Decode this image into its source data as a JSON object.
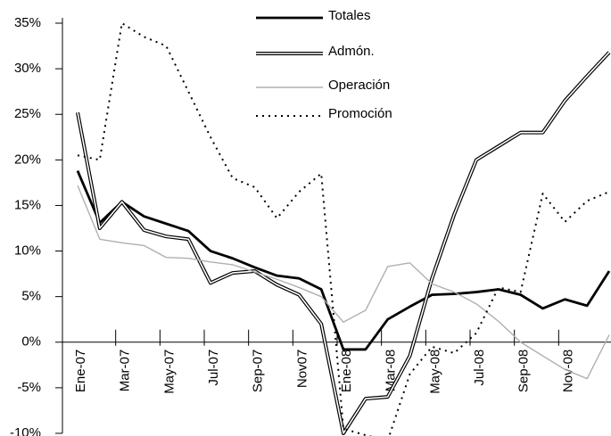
{
  "chart_data": {
    "type": "line",
    "categories": [
      "Ene-07",
      null,
      "Mar-07",
      null,
      "May-07",
      null,
      "Jul-07",
      null,
      "Sep-07",
      null,
      "Nov07",
      null,
      "Ene-08",
      null,
      "Mar-08",
      null,
      "May-08",
      null,
      "Jul-08",
      null,
      "Sep-08",
      null,
      "Nov-08",
      null,
      null
    ],
    "series": [
      {
        "name": "Totales",
        "color": "#000000",
        "line_style": "solid",
        "values": [
          18.8,
          13.1,
          15.4,
          13.8,
          13.0,
          12.2,
          10.0,
          9.2,
          8.2,
          7.3,
          7.0,
          5.8,
          -0.8,
          -0.8,
          2.5,
          3.9,
          5.2,
          5.3,
          5.5,
          5.8,
          5.2,
          3.7,
          4.7,
          4.0,
          7.8
        ]
      },
      {
        "name": "Admón.",
        "color": "#000000",
        "line_style": "double",
        "values": [
          25.2,
          12.5,
          15.4,
          12.3,
          11.6,
          11.3,
          6.5,
          7.6,
          7.8,
          6.3,
          5.2,
          2.0,
          -10.0,
          -6.2,
          -6.0,
          -1.5,
          7.0,
          14.0,
          20.0,
          21.5,
          23.0,
          23.0,
          26.5,
          29.2,
          31.8
        ]
      },
      {
        "name": "Operación",
        "color": "#b0b0b0",
        "line_style": "solid",
        "values": [
          17.2,
          11.3,
          10.9,
          10.6,
          9.3,
          9.2,
          8.8,
          8.5,
          7.7,
          6.9,
          6.0,
          5.0,
          2.2,
          3.5,
          8.3,
          8.7,
          6.4,
          5.5,
          4.2,
          2.3,
          0.0,
          -1.5,
          -3.0,
          -4.0,
          0.8
        ]
      },
      {
        "name": "Promoción",
        "color": "#000000",
        "line_style": "dotted",
        "values": [
          20.5,
          20.0,
          35.0,
          33.5,
          32.5,
          27.5,
          22.5,
          18.0,
          17.0,
          13.6,
          16.5,
          18.5,
          -9.5,
          -10.2,
          -10.8,
          -3.5,
          -0.5,
          -1.2,
          1.0,
          6.0,
          5.5,
          16.3,
          13.2,
          15.5,
          16.5
        ]
      }
    ],
    "ylim": [
      -10,
      35
    ],
    "yticks": [
      {
        "value": -10,
        "label": "-10%"
      },
      {
        "value": -5,
        "label": "-5%"
      },
      {
        "value": 0,
        "label": "0%"
      },
      {
        "value": 5,
        "label": "5%"
      },
      {
        "value": 10,
        "label": "10%"
      },
      {
        "value": 15,
        "label": "15%"
      },
      {
        "value": 20,
        "label": "20%"
      },
      {
        "value": 25,
        "label": "25%"
      },
      {
        "value": 30,
        "label": "30%"
      },
      {
        "value": 35,
        "label": "35%"
      }
    ],
    "grid": false,
    "legend": "top"
  }
}
